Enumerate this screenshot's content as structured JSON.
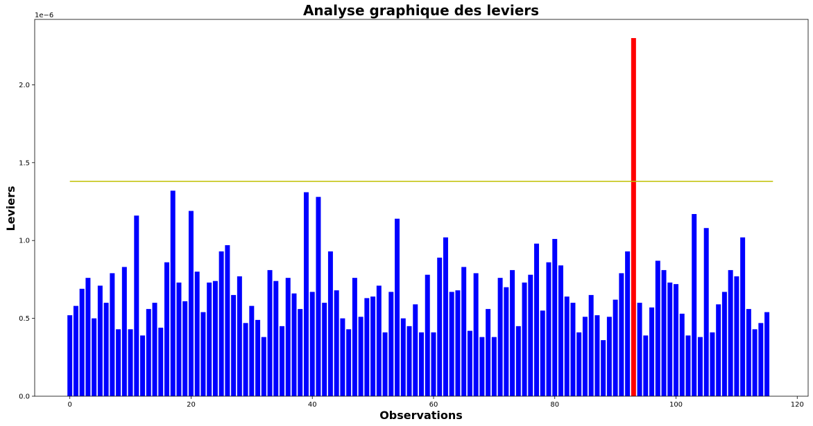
{
  "chart_data": {
    "type": "bar",
    "title": "Analyse graphique des leviers",
    "xlabel": "Observations",
    "ylabel": "Leviers",
    "y_offset_label": "1e−6",
    "xlim": [
      -5.8,
      121.8
    ],
    "ylim": [
      0,
      2.42
    ],
    "xticks": [
      0,
      20,
      40,
      60,
      80,
      100,
      120
    ],
    "xtick_labels": [
      "0",
      "20",
      "40",
      "60",
      "80",
      "100",
      "120"
    ],
    "yticks": [
      0.0,
      0.5,
      1.0,
      1.5,
      2.0
    ],
    "ytick_labels": [
      "0.0",
      "0.5",
      "1.0",
      "1.5",
      "2.0"
    ],
    "grid": false,
    "values": [
      0.52,
      0.58,
      0.69,
      0.76,
      0.5,
      0.71,
      0.6,
      0.79,
      0.43,
      0.83,
      0.43,
      1.16,
      0.39,
      0.56,
      0.6,
      0.44,
      0.86,
      1.32,
      0.73,
      0.61,
      1.19,
      0.8,
      0.54,
      0.73,
      0.74,
      0.93,
      0.97,
      0.65,
      0.77,
      0.47,
      0.58,
      0.49,
      0.38,
      0.81,
      0.74,
      0.45,
      0.76,
      0.66,
      0.56,
      1.31,
      0.67,
      1.28,
      0.6,
      0.93,
      0.68,
      0.5,
      0.43,
      0.76,
      0.51,
      0.63,
      0.64,
      0.71,
      0.41,
      0.67,
      1.14,
      0.5,
      0.45,
      0.59,
      0.41,
      0.78,
      0.41,
      0.89,
      1.02,
      0.67,
      0.68,
      0.83,
      0.42,
      0.79,
      0.38,
      0.56,
      0.38,
      0.76,
      0.7,
      0.81,
      0.45,
      0.73,
      0.78,
      0.98,
      0.55,
      0.86,
      1.01,
      0.84,
      0.64,
      0.6,
      0.41,
      0.51,
      0.65,
      0.52,
      0.36,
      0.51,
      0.62,
      0.79,
      0.93,
      2.3,
      0.6,
      0.39,
      0.57,
      0.87,
      0.81,
      0.73,
      0.72,
      0.53,
      0.39,
      1.17,
      0.38,
      1.08,
      0.41,
      0.59,
      0.67,
      0.81,
      0.77,
      1.02,
      0.56,
      0.43,
      0.47,
      0.54
    ],
    "highlight_index": 93,
    "threshold": 1.38,
    "threshold_x_range": [
      0,
      116
    ],
    "colors": {
      "bar": "#0000ff",
      "highlight": "#ff0000",
      "threshold": "#bfbf00",
      "axes": "#000000"
    }
  }
}
